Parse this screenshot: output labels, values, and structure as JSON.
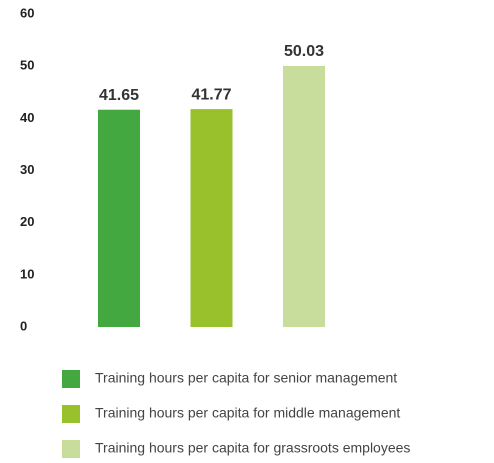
{
  "chart_data": {
    "type": "bar",
    "categories": [
      null
    ],
    "series": [
      {
        "name": "Training hours per capita for senior management",
        "color": "#42a83f",
        "values": [
          41.65
        ]
      },
      {
        "name": "Training hours per capita for middle management",
        "color": "#98c12b",
        "values": [
          41.77
        ]
      },
      {
        "name": "Training hours per capita for grassroots employees",
        "color": "#c8dd9b",
        "values": [
          50.03
        ]
      }
    ],
    "ylim": [
      0,
      60
    ],
    "yticks": [
      0,
      10,
      20,
      30,
      40,
      50,
      60
    ],
    "grid": false,
    "legend": "bottom"
  }
}
